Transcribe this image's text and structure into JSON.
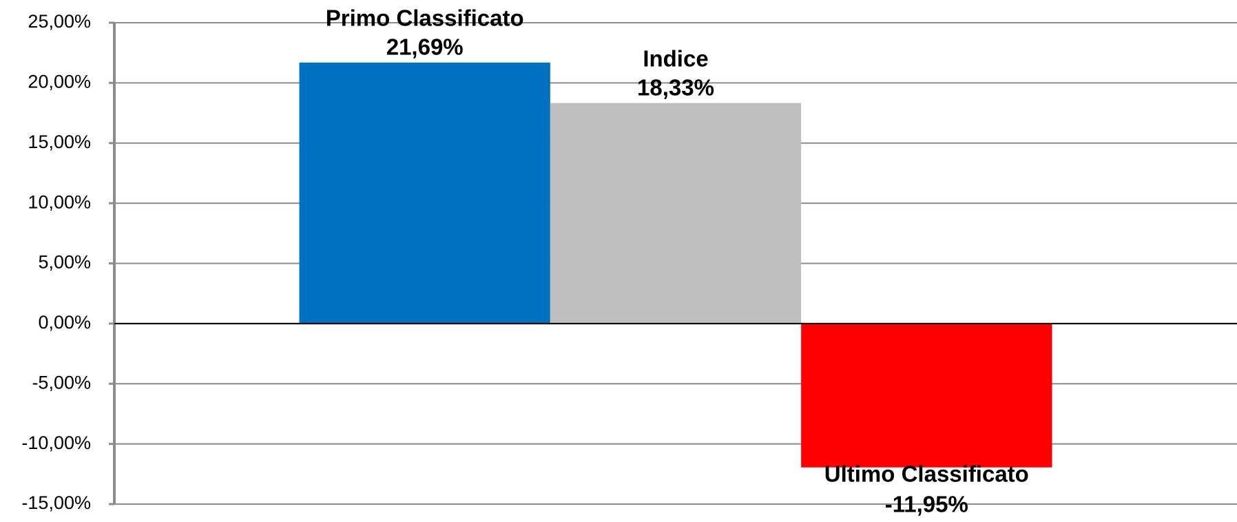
{
  "chart_data": {
    "type": "bar",
    "categories": [
      "Primo Classificato",
      "Indice",
      "Ultimo Classificato"
    ],
    "values": [
      21.69,
      18.33,
      -11.95
    ],
    "value_labels": [
      "21,69%",
      "18,33%",
      "-11,95%"
    ],
    "colors": [
      "#0070c0",
      "#bfbfbf",
      "#ff0000"
    ],
    "ylim": [
      -15,
      25
    ],
    "yticks": [
      {
        "value": -15,
        "label": "-15,00%"
      },
      {
        "value": -10,
        "label": "-10,00%"
      },
      {
        "value": -5,
        "label": "-5,00%"
      },
      {
        "value": 0,
        "label": "0,00%"
      },
      {
        "value": 5,
        "label": "5,00%"
      },
      {
        "value": 10,
        "label": "10,00%"
      },
      {
        "value": 15,
        "label": "15,00%"
      },
      {
        "value": 20,
        "label": "20,00%"
      },
      {
        "value": 25,
        "label": "25,00%"
      }
    ],
    "grid": true
  }
}
